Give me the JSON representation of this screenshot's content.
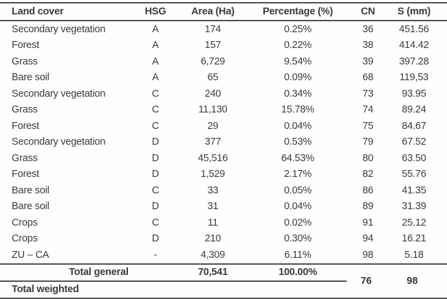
{
  "table": {
    "columns": [
      "Land cover",
      "HSG",
      "Area (Ha)",
      "Percentage (%)",
      "CN",
      "S (mm)"
    ],
    "rows": [
      [
        "Secondary vegetation",
        "A",
        "174",
        "0.25%",
        "36",
        "451.56"
      ],
      [
        "Forest",
        "A",
        "157",
        "0.22%",
        "38",
        "414.42"
      ],
      [
        "Grass",
        "A",
        "6,729",
        "9.54%",
        "39",
        "397.28"
      ],
      [
        "Bare soil",
        "A",
        "65",
        "0.09%",
        "68",
        "119,53"
      ],
      [
        "Secondary vegetation",
        "C",
        "240",
        "0.34%",
        "73",
        "93.95"
      ],
      [
        "Grass",
        "C",
        "11,130",
        "15.78%",
        "74",
        "89.24"
      ],
      [
        "Forest",
        "C",
        "29",
        "0.04%",
        "75",
        "84.67"
      ],
      [
        "Secondary vegetation",
        "D",
        "377",
        "0.53%",
        "79",
        "67.52"
      ],
      [
        "Grass",
        "D",
        "45,516",
        "64.53%",
        "80",
        "63.50"
      ],
      [
        "Forest",
        "D",
        "1,529",
        "2.17%",
        "82",
        "55.76"
      ],
      [
        "Bare soil",
        "C",
        "33",
        "0.05%",
        "86",
        "41.35"
      ],
      [
        "Bare soil",
        "D",
        "31",
        "0.04%",
        "89",
        "31.39"
      ],
      [
        "Crops",
        "C",
        "11",
        "0.02%",
        "91",
        "25.12"
      ],
      [
        "Crops",
        "D",
        "210",
        "0.30%",
        "94",
        "16.21"
      ],
      [
        "ZU – CA",
        "-",
        "4,309",
        "6.11%",
        "98",
        "5.18"
      ]
    ],
    "totals": {
      "general_label": "Total general",
      "general_area": "70,541",
      "general_percentage": "100.00%",
      "weighted_label": "Total weighted",
      "weighted_cn": "76",
      "weighted_s": "98"
    },
    "colors": {
      "text": "#3a3a3a",
      "rule": "#4e4e4e",
      "background": "#fefefe"
    }
  }
}
